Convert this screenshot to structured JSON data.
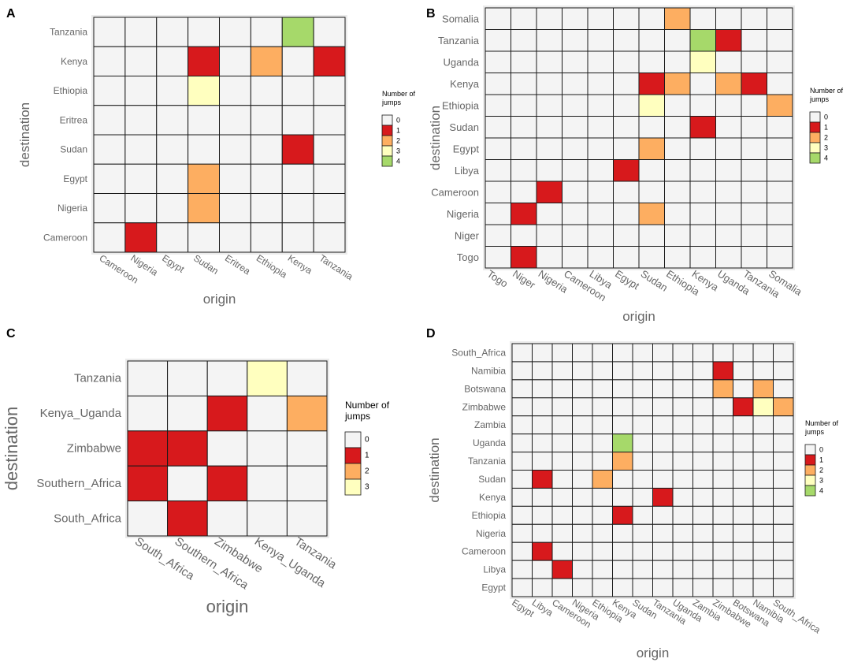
{
  "legend_colors": {
    "0": "#f4f4f4",
    "1": "#d7191c",
    "2": "#fdae61",
    "3": "#ffffbf",
    "4": "#a6d96a"
  },
  "grid_stroke": "#1a1a1a",
  "label_color": "#666666",
  "chart_data": [
    {
      "panel": "A",
      "type": "heatmap",
      "xlabel": "origin",
      "ylabel": "destination",
      "x": [
        "Cameroon",
        "Nigeria",
        "Egypt",
        "Sudan",
        "Eritrea",
        "Ethiopia",
        "Kenya",
        "Tanzania"
      ],
      "y_top_to_bottom": [
        "Tanzania",
        "Kenya",
        "Ethiopia",
        "Eritrea",
        "Sudan",
        "Egypt",
        "Nigeria",
        "Cameroon"
      ],
      "cells": [
        {
          "origin": "Kenya",
          "destination": "Tanzania",
          "value": 4
        },
        {
          "origin": "Sudan",
          "destination": "Kenya",
          "value": 1
        },
        {
          "origin": "Ethiopia",
          "destination": "Kenya",
          "value": 2
        },
        {
          "origin": "Tanzania",
          "destination": "Kenya",
          "value": 1
        },
        {
          "origin": "Sudan",
          "destination": "Ethiopia",
          "value": 3
        },
        {
          "origin": "Kenya",
          "destination": "Sudan",
          "value": 1
        },
        {
          "origin": "Sudan",
          "destination": "Egypt",
          "value": 2
        },
        {
          "origin": "Sudan",
          "destination": "Nigeria",
          "value": 2
        },
        {
          "origin": "Nigeria",
          "destination": "Cameroon",
          "value": 1
        }
      ],
      "legend": {
        "title": [
          "Number of",
          "jumps"
        ],
        "levels": [
          "0",
          "1",
          "2",
          "3",
          "4"
        ]
      }
    },
    {
      "panel": "B",
      "type": "heatmap",
      "xlabel": "origin",
      "ylabel": "destination",
      "x": [
        "Togo",
        "Niger",
        "Nigeria",
        "Cameroon",
        "Libya",
        "Egypt",
        "Sudan",
        "Ethiopia",
        "Kenya",
        "Uganda",
        "Tanzania",
        "Somalia"
      ],
      "y_top_to_bottom": [
        "Somalia",
        "Tanzania",
        "Uganda",
        "Kenya",
        "Ethiopia",
        "Sudan",
        "Egypt",
        "Libya",
        "Cameroon",
        "Nigeria",
        "Niger",
        "Togo"
      ],
      "cells": [
        {
          "origin": "Ethiopia",
          "destination": "Somalia",
          "value": 2
        },
        {
          "origin": "Kenya",
          "destination": "Tanzania",
          "value": 4
        },
        {
          "origin": "Uganda",
          "destination": "Tanzania",
          "value": 1
        },
        {
          "origin": "Kenya",
          "destination": "Uganda",
          "value": 3
        },
        {
          "origin": "Sudan",
          "destination": "Kenya",
          "value": 1
        },
        {
          "origin": "Ethiopia",
          "destination": "Kenya",
          "value": 2
        },
        {
          "origin": "Uganda",
          "destination": "Kenya",
          "value": 2
        },
        {
          "origin": "Tanzania",
          "destination": "Kenya",
          "value": 1
        },
        {
          "origin": "Sudan",
          "destination": "Ethiopia",
          "value": 3
        },
        {
          "origin": "Somalia",
          "destination": "Ethiopia",
          "value": 2
        },
        {
          "origin": "Kenya",
          "destination": "Sudan",
          "value": 1
        },
        {
          "origin": "Sudan",
          "destination": "Egypt",
          "value": 2
        },
        {
          "origin": "Egypt",
          "destination": "Libya",
          "value": 1
        },
        {
          "origin": "Nigeria",
          "destination": "Cameroon",
          "value": 1
        },
        {
          "origin": "Niger",
          "destination": "Nigeria",
          "value": 1
        },
        {
          "origin": "Sudan",
          "destination": "Nigeria",
          "value": 2
        },
        {
          "origin": "Niger",
          "destination": "Togo",
          "value": 1
        }
      ],
      "legend": {
        "title": [
          "Number of",
          "jumps"
        ],
        "levels": [
          "0",
          "1",
          "2",
          "3",
          "4"
        ]
      }
    },
    {
      "panel": "C",
      "type": "heatmap",
      "xlabel": "origin",
      "ylabel": "destination",
      "x": [
        "South_Africa",
        "Southern_Africa",
        "Zimbabwe",
        "Kenya_Uganda",
        "Tanzania"
      ],
      "y_top_to_bottom": [
        "Tanzania",
        "Kenya_Uganda",
        "Zimbabwe",
        "Southern_Africa",
        "South_Africa"
      ],
      "cells": [
        {
          "origin": "Kenya_Uganda",
          "destination": "Tanzania",
          "value": 3
        },
        {
          "origin": "Zimbabwe",
          "destination": "Kenya_Uganda",
          "value": 1
        },
        {
          "origin": "Tanzania",
          "destination": "Kenya_Uganda",
          "value": 2
        },
        {
          "origin": "South_Africa",
          "destination": "Zimbabwe",
          "value": 1
        },
        {
          "origin": "Southern_Africa",
          "destination": "Zimbabwe",
          "value": 1
        },
        {
          "origin": "South_Africa",
          "destination": "Southern_Africa",
          "value": 1
        },
        {
          "origin": "Zimbabwe",
          "destination": "Southern_Africa",
          "value": 1
        },
        {
          "origin": "Southern_Africa",
          "destination": "South_Africa",
          "value": 1
        }
      ],
      "legend": {
        "title": [
          "Number of",
          "jumps"
        ],
        "levels": [
          "0",
          "1",
          "2",
          "3"
        ]
      }
    },
    {
      "panel": "D",
      "type": "heatmap",
      "xlabel": "origin",
      "ylabel": "destination",
      "x": [
        "Egypt",
        "Libya",
        "Cameroon",
        "Nigeria",
        "Ethiopia",
        "Kenya",
        "Sudan",
        "Tanzania",
        "Uganda",
        "Zambia",
        "Zimbabwe",
        "Botswana",
        "Namibia",
        "South_Africa"
      ],
      "y_top_to_bottom": [
        "South_Africa",
        "Namibia",
        "Botswana",
        "Zimbabwe",
        "Zambia",
        "Uganda",
        "Tanzania",
        "Sudan",
        "Kenya",
        "Ethiopia",
        "Nigeria",
        "Cameroon",
        "Libya",
        "Egypt"
      ],
      "cells": [
        {
          "origin": "Zimbabwe",
          "destination": "Namibia",
          "value": 1
        },
        {
          "origin": "Zimbabwe",
          "destination": "Botswana",
          "value": 2
        },
        {
          "origin": "Namibia",
          "destination": "Botswana",
          "value": 2
        },
        {
          "origin": "Botswana",
          "destination": "Zimbabwe",
          "value": 1
        },
        {
          "origin": "Namibia",
          "destination": "Zimbabwe",
          "value": 3
        },
        {
          "origin": "South_Africa",
          "destination": "Zimbabwe",
          "value": 2
        },
        {
          "origin": "Kenya",
          "destination": "Uganda",
          "value": 4
        },
        {
          "origin": "Kenya",
          "destination": "Tanzania",
          "value": 2
        },
        {
          "origin": "Libya",
          "destination": "Sudan",
          "value": 1
        },
        {
          "origin": "Ethiopia",
          "destination": "Sudan",
          "value": 2
        },
        {
          "origin": "Tanzania",
          "destination": "Kenya",
          "value": 1
        },
        {
          "origin": "Kenya",
          "destination": "Ethiopia",
          "value": 1
        },
        {
          "origin": "Libya",
          "destination": "Cameroon",
          "value": 1
        },
        {
          "origin": "Cameroon",
          "destination": "Libya",
          "value": 1
        }
      ],
      "legend": {
        "title": [
          "Number of",
          "jumps"
        ],
        "levels": [
          "0",
          "1",
          "2",
          "3",
          "4"
        ]
      }
    }
  ]
}
